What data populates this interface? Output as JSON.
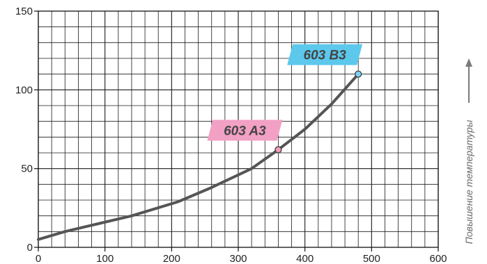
{
  "chart_data": {
    "type": "line",
    "title": "",
    "xlabel": "",
    "ylabel": "",
    "xlim": [
      0,
      600
    ],
    "ylim": [
      0,
      150
    ],
    "x_ticks": [
      0,
      100,
      200,
      300,
      400,
      500,
      600
    ],
    "y_ticks": [
      0,
      50,
      100,
      150
    ],
    "x_tick_labels": [
      "0",
      "100",
      "200",
      "300",
      "400",
      "500",
      "600"
    ],
    "y_tick_labels": [
      "0",
      "50",
      "100",
      "150"
    ],
    "grid": true,
    "grid_minor_x_step": 20,
    "grid_minor_y_step": 10,
    "series": [
      {
        "x": [
          0,
          40,
          90,
          140,
          210,
          260,
          320,
          360,
          400,
          440,
          480
        ],
        "y": [
          5,
          10,
          15,
          20,
          29,
          38,
          50,
          62,
          75,
          91,
          110
        ],
        "color": "#555555"
      }
    ],
    "annotations": [
      {
        "text": "603 A3",
        "x": 360,
        "y": 62,
        "color": "#f2a0c4",
        "marker_color": "#f29ab8"
      },
      {
        "text": "603 B3",
        "x": 480,
        "y": 110,
        "color": "#5bc8ec",
        "marker_color": "#7dd3f0"
      }
    ],
    "side_caption": "Повышение температуры"
  }
}
